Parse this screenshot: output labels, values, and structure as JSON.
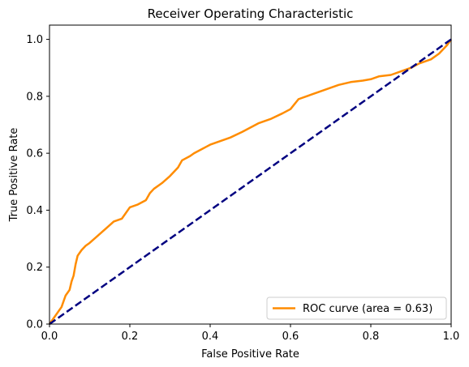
{
  "chart_data": {
    "type": "line",
    "title": "Receiver Operating Characteristic",
    "xlabel": "False Positive Rate",
    "ylabel": "True Positive Rate",
    "xlim": [
      0.0,
      1.0
    ],
    "ylim": [
      0.0,
      1.05
    ],
    "xticks": [
      "0.0",
      "0.2",
      "0.4",
      "0.6",
      "0.8",
      "1.0"
    ],
    "yticks": [
      "0.0",
      "0.2",
      "0.4",
      "0.6",
      "0.8",
      "1.0"
    ],
    "grid": false,
    "legend_position": "lower right",
    "series": [
      {
        "name": "ROC curve (area = 0.63)",
        "color": "#ff8c00",
        "style": "solid",
        "x": [
          0.0,
          0.005,
          0.01,
          0.02,
          0.03,
          0.04,
          0.05,
          0.055,
          0.06,
          0.065,
          0.07,
          0.075,
          0.08,
          0.09,
          0.1,
          0.12,
          0.14,
          0.16,
          0.18,
          0.2,
          0.22,
          0.24,
          0.25,
          0.26,
          0.28,
          0.3,
          0.32,
          0.33,
          0.35,
          0.36,
          0.38,
          0.4,
          0.42,
          0.45,
          0.48,
          0.5,
          0.52,
          0.55,
          0.58,
          0.6,
          0.62,
          0.65,
          0.68,
          0.7,
          0.72,
          0.75,
          0.78,
          0.8,
          0.82,
          0.85,
          0.88,
          0.9,
          0.92,
          0.95,
          0.97,
          0.99,
          1.0
        ],
        "y": [
          0.0,
          0.01,
          0.02,
          0.04,
          0.06,
          0.1,
          0.12,
          0.15,
          0.17,
          0.21,
          0.24,
          0.25,
          0.26,
          0.275,
          0.285,
          0.31,
          0.335,
          0.36,
          0.37,
          0.41,
          0.42,
          0.435,
          0.46,
          0.475,
          0.495,
          0.52,
          0.55,
          0.575,
          0.59,
          0.6,
          0.615,
          0.63,
          0.64,
          0.655,
          0.675,
          0.69,
          0.705,
          0.72,
          0.74,
          0.755,
          0.79,
          0.805,
          0.82,
          0.83,
          0.84,
          0.85,
          0.855,
          0.86,
          0.87,
          0.875,
          0.89,
          0.9,
          0.915,
          0.93,
          0.95,
          0.98,
          1.0
        ]
      },
      {
        "name": "",
        "color": "#000080",
        "style": "dashed",
        "x": [
          0.0,
          1.0
        ],
        "y": [
          0.0,
          1.0
        ]
      }
    ]
  }
}
